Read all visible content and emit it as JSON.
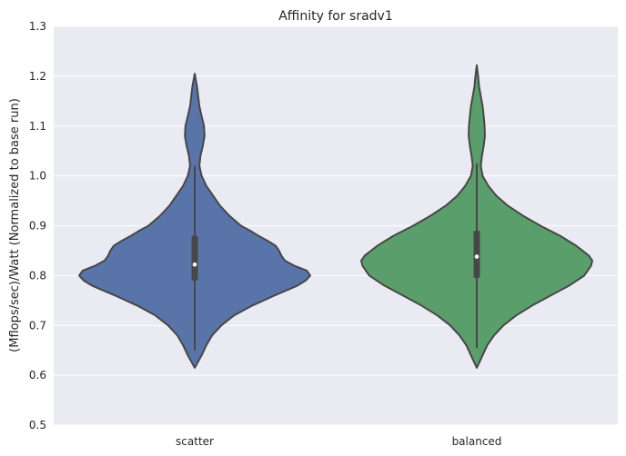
{
  "chart_data": {
    "type": "violin",
    "title": "Affinity for sradv1",
    "xlabel": "",
    "ylabel": "(Mflops/sec)/Watt (Normalized to base run)",
    "ylim": [
      0.5,
      1.3
    ],
    "yticks": [
      "0.5",
      "0.6",
      "0.7",
      "0.8",
      "0.9",
      "1.0",
      "1.1",
      "1.2",
      "1.3"
    ],
    "grid": true,
    "categories": [
      "scatter",
      "balanced"
    ],
    "colors": {
      "scatter": "#5874a8",
      "balanced": "#5a9e6c",
      "outline": "#474747",
      "background": "#eaeaf2"
    },
    "series": [
      {
        "category": "scatter",
        "min": 0.615,
        "max": 1.205,
        "median": 0.822,
        "q1": 0.79,
        "q3": 0.88,
        "whisker_low": 0.65,
        "whisker_high": 1.02,
        "density": [
          [
            0.615,
            0.0
          ],
          [
            0.64,
            0.06
          ],
          [
            0.66,
            0.1
          ],
          [
            0.68,
            0.15
          ],
          [
            0.7,
            0.23
          ],
          [
            0.72,
            0.34
          ],
          [
            0.74,
            0.5
          ],
          [
            0.76,
            0.69
          ],
          [
            0.78,
            0.89
          ],
          [
            0.79,
            0.96
          ],
          [
            0.8,
            1.0
          ],
          [
            0.81,
            0.97
          ],
          [
            0.82,
            0.86
          ],
          [
            0.83,
            0.78
          ],
          [
            0.84,
            0.75
          ],
          [
            0.85,
            0.73
          ],
          [
            0.86,
            0.7
          ],
          [
            0.87,
            0.63
          ],
          [
            0.88,
            0.55
          ],
          [
            0.89,
            0.48
          ],
          [
            0.9,
            0.4
          ],
          [
            0.92,
            0.3
          ],
          [
            0.94,
            0.22
          ],
          [
            0.96,
            0.16
          ],
          [
            0.98,
            0.1
          ],
          [
            1.0,
            0.06
          ],
          [
            1.02,
            0.04
          ],
          [
            1.04,
            0.05
          ],
          [
            1.06,
            0.07
          ],
          [
            1.08,
            0.085
          ],
          [
            1.1,
            0.08
          ],
          [
            1.12,
            0.06
          ],
          [
            1.14,
            0.04
          ],
          [
            1.16,
            0.03
          ],
          [
            1.18,
            0.02
          ],
          [
            1.205,
            0.0
          ]
        ]
      },
      {
        "category": "balanced",
        "min": 0.615,
        "max": 1.222,
        "median": 0.838,
        "q1": 0.795,
        "q3": 0.89,
        "whisker_low": 0.655,
        "whisker_high": 1.025,
        "density": [
          [
            0.615,
            0.0
          ],
          [
            0.64,
            0.05
          ],
          [
            0.66,
            0.09
          ],
          [
            0.68,
            0.15
          ],
          [
            0.7,
            0.23
          ],
          [
            0.72,
            0.34
          ],
          [
            0.74,
            0.48
          ],
          [
            0.76,
            0.64
          ],
          [
            0.78,
            0.8
          ],
          [
            0.8,
            0.93
          ],
          [
            0.82,
            0.99
          ],
          [
            0.83,
            1.0
          ],
          [
            0.84,
            0.97
          ],
          [
            0.86,
            0.86
          ],
          [
            0.88,
            0.72
          ],
          [
            0.9,
            0.55
          ],
          [
            0.92,
            0.4
          ],
          [
            0.94,
            0.27
          ],
          [
            0.96,
            0.17
          ],
          [
            0.98,
            0.1
          ],
          [
            1.0,
            0.05
          ],
          [
            1.02,
            0.035
          ],
          [
            1.04,
            0.045
          ],
          [
            1.06,
            0.06
          ],
          [
            1.08,
            0.07
          ],
          [
            1.1,
            0.068
          ],
          [
            1.12,
            0.06
          ],
          [
            1.14,
            0.05
          ],
          [
            1.16,
            0.035
          ],
          [
            1.18,
            0.02
          ],
          [
            1.2,
            0.012
          ],
          [
            1.222,
            0.0
          ]
        ]
      }
    ]
  }
}
